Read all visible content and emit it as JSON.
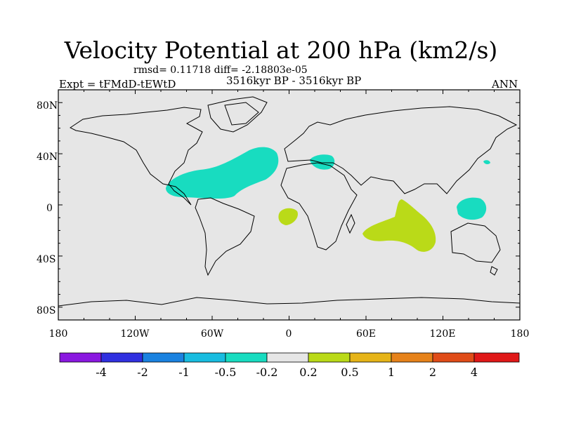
{
  "header": {
    "title": "Velocity Potential at 200 hPa (km2/s)",
    "stats": "rmsd= 0.11718 diff= -2.18803e-05",
    "period": "3516kyr BP - 3516kyr BP",
    "experiment": "Expt = tFMdD-tEWtD",
    "season": "ANN"
  },
  "map": {
    "lat_labels": [
      "80N",
      "40N",
      "0",
      "40S",
      "80S"
    ],
    "lon_labels": [
      "180",
      "120W",
      "60W",
      "0",
      "60E",
      "120E",
      "180"
    ],
    "background_color": "#e6e6e6"
  },
  "colorbar": {
    "labels": [
      "-4",
      "-2",
      "-1",
      "-0.5",
      "-0.2",
      "0.2",
      "0.5",
      "1",
      "2",
      "4"
    ],
    "colors": [
      "#8a18e0",
      "#3030e0",
      "#1a82e0",
      "#18bce0",
      "#18dcc0",
      "#e6e6e6",
      "#bada18",
      "#e6b418",
      "#e6821a",
      "#e04c18",
      "#e01818"
    ]
  }
}
